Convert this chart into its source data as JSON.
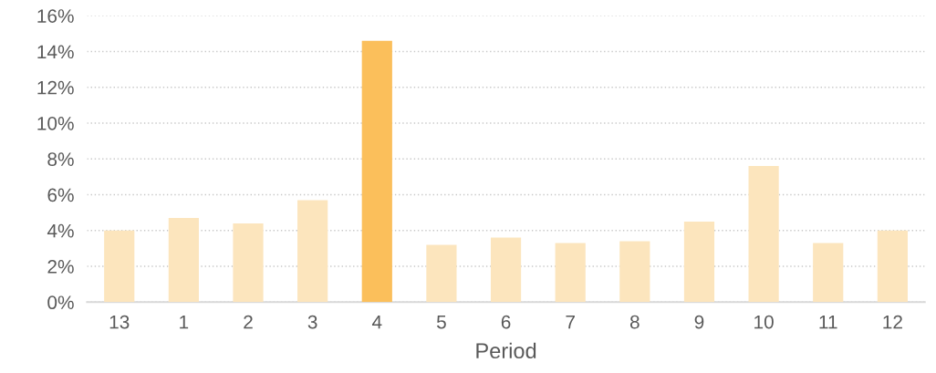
{
  "chart_data": {
    "type": "bar",
    "xlabel": "Period",
    "categories": [
      "13",
      "1",
      "2",
      "3",
      "4",
      "5",
      "6",
      "7",
      "8",
      "9",
      "10",
      "11",
      "12"
    ],
    "values": [
      4.0,
      4.7,
      4.4,
      5.7,
      14.6,
      3.2,
      3.6,
      3.3,
      3.4,
      4.5,
      7.6,
      3.3,
      4.0
    ],
    "colors": [
      "#fce5bd",
      "#fce5bd",
      "#fce5bd",
      "#fce5bd",
      "#fbbf5b",
      "#fce5bd",
      "#fce5bd",
      "#fce5bd",
      "#fce5bd",
      "#fce5bd",
      "#fce5bd",
      "#fce5bd",
      "#fce5bd"
    ],
    "ylim": [
      0,
      16
    ],
    "yticks": [
      {
        "value": 0,
        "label": "0%"
      },
      {
        "value": 2,
        "label": "2%"
      },
      {
        "value": 4,
        "label": "4%"
      },
      {
        "value": 6,
        "label": "6%"
      },
      {
        "value": 8,
        "label": "8%"
      },
      {
        "value": 10,
        "label": "10%"
      },
      {
        "value": 12,
        "label": "12%"
      },
      {
        "value": 14,
        "label": "14%"
      },
      {
        "value": 16,
        "label": "16%"
      }
    ],
    "grid": "y"
  }
}
